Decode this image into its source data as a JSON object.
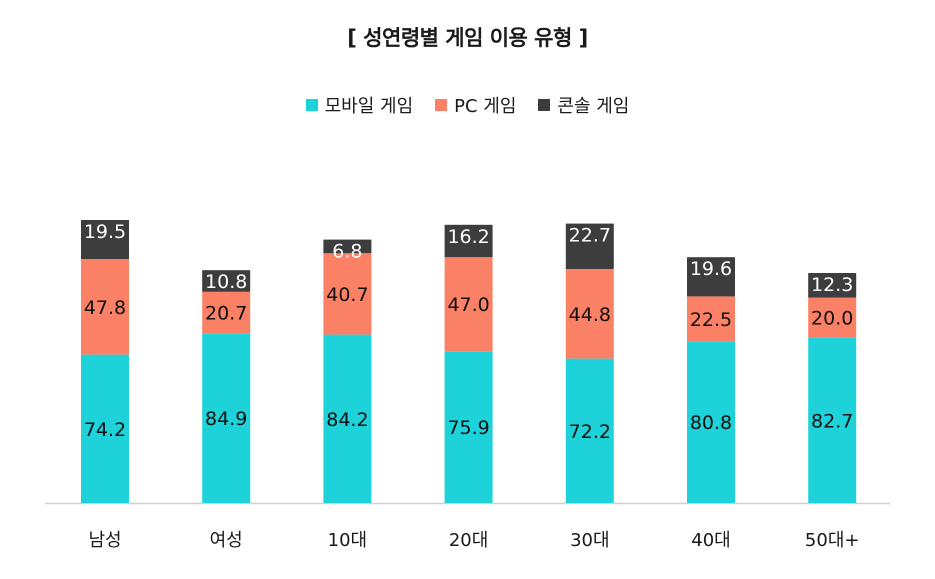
{
  "chart_data": {
    "type": "bar",
    "stacked": true,
    "title": "[ 성연령별 게임 이용 유형 ]",
    "categories": [
      "남성",
      "여성",
      "10대",
      "20대",
      "30대",
      "40대",
      "50대+"
    ],
    "series": [
      {
        "name": "모바일 게임",
        "color": "#1dd3d9",
        "values": [
          74.2,
          84.9,
          84.2,
          75.9,
          72.2,
          80.8,
          82.7
        ]
      },
      {
        "name": "PC 게임",
        "color": "#fa8066",
        "values": [
          47.8,
          20.7,
          40.7,
          47.0,
          44.8,
          22.5,
          20.0
        ]
      },
      {
        "name": "콘솔 게임",
        "color": "#3d3d3d",
        "values": [
          19.5,
          10.8,
          6.8,
          16.2,
          22.7,
          19.6,
          12.3
        ]
      }
    ],
    "legend_position": "top-center",
    "grid": false,
    "ylim": [
      0,
      145
    ]
  }
}
